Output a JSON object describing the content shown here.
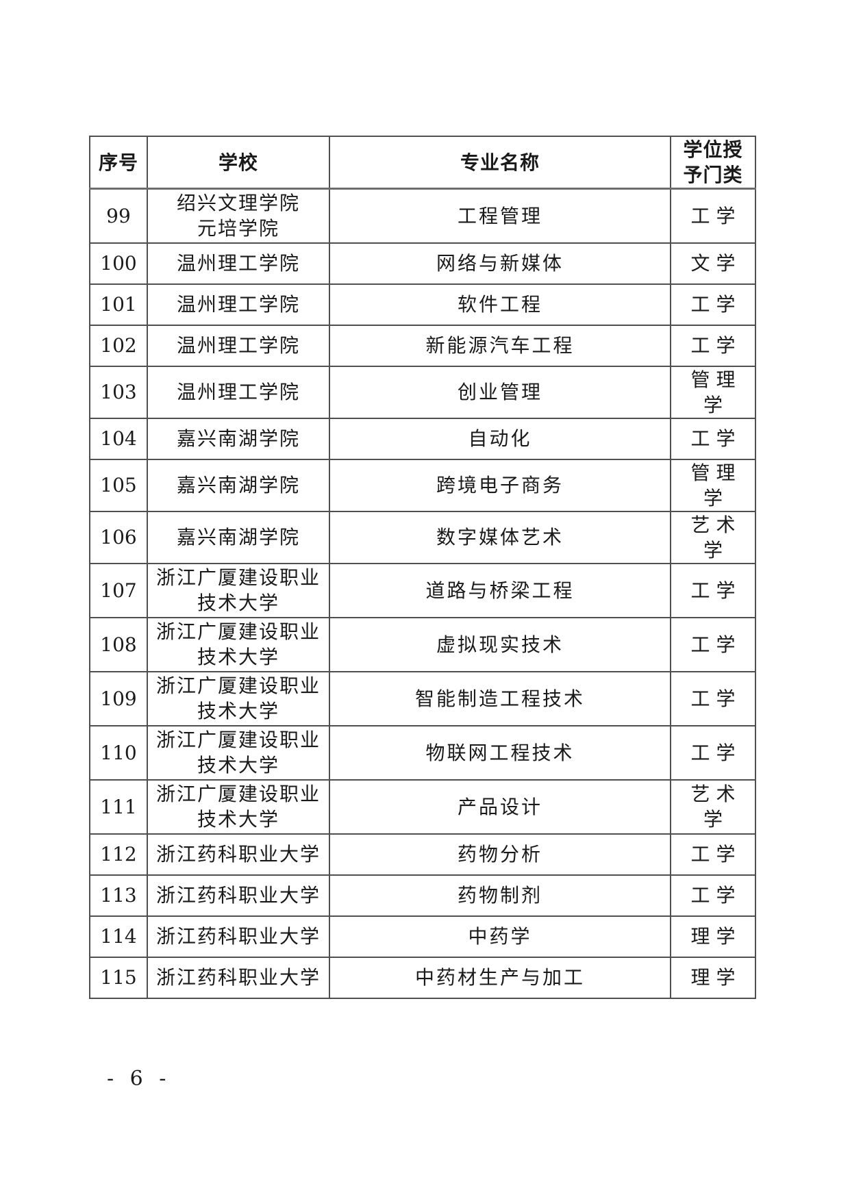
{
  "page": {
    "footer_text": "- 6 -",
    "background": "#ffffff",
    "text_color": "#1a1a1a",
    "border_color": "#4f4f4f",
    "page_number": "6"
  },
  "table": {
    "headers": [
      "序号",
      "学校",
      "专业名称",
      "学位授\n予门类"
    ],
    "rows": [
      {
        "no": "99",
        "school": "绍兴文理学院\n元培学院",
        "major": "工程管理",
        "degree": "工学"
      },
      {
        "no": "100",
        "school": "温州理工学院",
        "major": "网络与新媒体",
        "degree": "文学"
      },
      {
        "no": "101",
        "school": "温州理工学院",
        "major": "软件工程",
        "degree": "工学"
      },
      {
        "no": "102",
        "school": "温州理工学院",
        "major": "新能源汽车工程",
        "degree": "工学"
      },
      {
        "no": "103",
        "school": "温州理工学院",
        "major": "创业管理",
        "degree": "管理学"
      },
      {
        "no": "104",
        "school": "嘉兴南湖学院",
        "major": "自动化",
        "degree": "工学"
      },
      {
        "no": "105",
        "school": "嘉兴南湖学院",
        "major": "跨境电子商务",
        "degree": "管理学"
      },
      {
        "no": "106",
        "school": "嘉兴南湖学院",
        "major": "数字媒体艺术",
        "degree": "艺术学"
      },
      {
        "no": "107",
        "school": "浙江广厦建设职业\n技术大学",
        "major": "道路与桥梁工程",
        "degree": "工学"
      },
      {
        "no": "108",
        "school": "浙江广厦建设职业\n技术大学",
        "major": "虚拟现实技术",
        "degree": "工学"
      },
      {
        "no": "109",
        "school": "浙江广厦建设职业\n技术大学",
        "major": "智能制造工程技术",
        "degree": "工学"
      },
      {
        "no": "110",
        "school": "浙江广厦建设职业\n技术大学",
        "major": "物联网工程技术",
        "degree": "工学"
      },
      {
        "no": "111",
        "school": "浙江广厦建设职业\n技术大学",
        "major": "产品设计",
        "degree": "艺术学"
      },
      {
        "no": "112",
        "school": "浙江药科职业大学",
        "major": "药物分析",
        "degree": "工学"
      },
      {
        "no": "113",
        "school": "浙江药科职业大学",
        "major": "药物制剂",
        "degree": "工学"
      },
      {
        "no": "114",
        "school": "浙江药科职业大学",
        "major": "中药学",
        "degree": "理学"
      },
      {
        "no": "115",
        "school": "浙江药科职业大学",
        "major": "中药材生产与加工",
        "degree": "理学"
      }
    ]
  }
}
